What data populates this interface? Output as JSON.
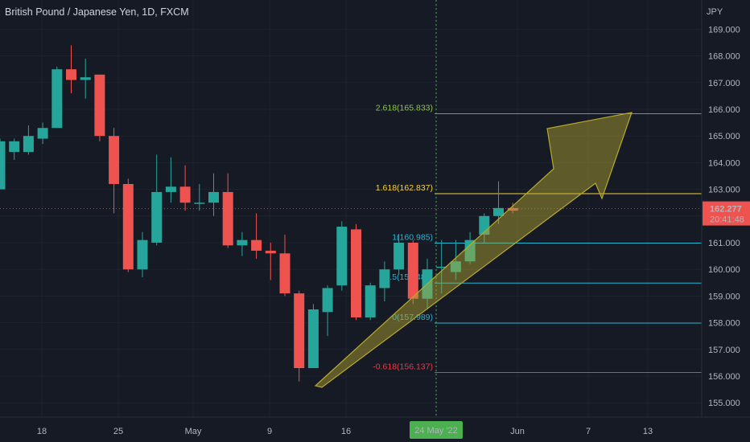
{
  "header": {
    "title": "British Pound / Japanese Yen, 1D, FXCM"
  },
  "price_axis": {
    "unit": "JPY",
    "ticks": [
      "169.000",
      "168.000",
      "167.000",
      "166.000",
      "165.000",
      "164.000",
      "163.000",
      "162.000",
      "161.000",
      "160.000",
      "159.000",
      "158.000",
      "157.000",
      "156.000",
      "155.000"
    ]
  },
  "time_axis": {
    "labels": [
      "18",
      "25",
      "May",
      "9",
      "16",
      "24 May '22",
      "Jun",
      "7",
      "13"
    ]
  },
  "current_price": {
    "value": "162.277",
    "countdown": "20:41:48"
  },
  "colors": {
    "up": "#26a69a",
    "down": "#ef5350",
    "background": "#161a25",
    "grid": "#1f2330",
    "fib_red": "#f23645",
    "fib_cyan": "#22b5d4",
    "fib_yellow": "#f5d13c",
    "fib_green": "#4caf50",
    "arrow": "#b6a92e",
    "crosshair": "#4caf50"
  },
  "chart_data": {
    "type": "candlestick",
    "title": "British Pound / Japanese Yen, 1D, FXCM",
    "ylabel": "JPY",
    "ylim": [
      154.6,
      170.2
    ],
    "x_labels": [
      "18",
      "25",
      "May",
      "9",
      "16",
      "24 May '22",
      "Jun",
      "7",
      "13"
    ],
    "candles": [
      {
        "o": 163.0,
        "h": 164.9,
        "l": 163.0,
        "c": 164.8
      },
      {
        "o": 164.4,
        "h": 164.9,
        "l": 164.1,
        "c": 164.8
      },
      {
        "o": 164.4,
        "h": 165.4,
        "l": 164.3,
        "c": 165.0
      },
      {
        "o": 164.9,
        "h": 165.5,
        "l": 164.7,
        "c": 165.3
      },
      {
        "o": 165.3,
        "h": 167.6,
        "l": 165.3,
        "c": 167.5
      },
      {
        "o": 167.5,
        "h": 168.4,
        "l": 166.6,
        "c": 167.1
      },
      {
        "o": 167.1,
        "h": 167.9,
        "l": 166.4,
        "c": 167.2
      },
      {
        "o": 167.3,
        "h": 167.3,
        "l": 164.8,
        "c": 165.0
      },
      {
        "o": 165.0,
        "h": 165.3,
        "l": 162.1,
        "c": 163.2
      },
      {
        "o": 163.2,
        "h": 163.4,
        "l": 159.9,
        "c": 160.0
      },
      {
        "o": 160.0,
        "h": 161.4,
        "l": 159.7,
        "c": 161.1
      },
      {
        "o": 161.0,
        "h": 164.3,
        "l": 160.9,
        "c": 162.9
      },
      {
        "o": 162.9,
        "h": 164.2,
        "l": 162.5,
        "c": 163.1
      },
      {
        "o": 163.1,
        "h": 163.9,
        "l": 162.2,
        "c": 162.5
      },
      {
        "o": 162.5,
        "h": 163.2,
        "l": 162.2,
        "c": 162.5
      },
      {
        "o": 162.5,
        "h": 163.6,
        "l": 162.0,
        "c": 162.9
      },
      {
        "o": 162.9,
        "h": 163.6,
        "l": 160.8,
        "c": 160.9
      },
      {
        "o": 160.9,
        "h": 161.4,
        "l": 160.5,
        "c": 161.1
      },
      {
        "o": 161.1,
        "h": 162.1,
        "l": 160.4,
        "c": 160.7
      },
      {
        "o": 160.7,
        "h": 161.0,
        "l": 159.6,
        "c": 160.6
      },
      {
        "o": 160.6,
        "h": 161.3,
        "l": 159.0,
        "c": 159.1
      },
      {
        "o": 159.1,
        "h": 159.2,
        "l": 155.8,
        "c": 156.3
      },
      {
        "o": 156.3,
        "h": 158.7,
        "l": 156.3,
        "c": 158.5
      },
      {
        "o": 158.4,
        "h": 159.4,
        "l": 157.5,
        "c": 159.3
      },
      {
        "o": 159.4,
        "h": 161.8,
        "l": 159.2,
        "c": 161.6
      },
      {
        "o": 161.5,
        "h": 161.7,
        "l": 158.1,
        "c": 158.2
      },
      {
        "o": 158.2,
        "h": 159.5,
        "l": 158.1,
        "c": 159.4
      },
      {
        "o": 159.3,
        "h": 160.3,
        "l": 158.8,
        "c": 160.0
      },
      {
        "o": 160.0,
        "h": 161.3,
        "l": 159.8,
        "c": 161.0
      },
      {
        "o": 161.0,
        "h": 161.1,
        "l": 158.7,
        "c": 158.9
      },
      {
        "o": 158.9,
        "h": 160.4,
        "l": 158.5,
        "c": 160.0
      },
      {
        "o": 160.1,
        "h": 161.1,
        "l": 159.1,
        "c": 160.1
      },
      {
        "o": 159.9,
        "h": 161.1,
        "l": 159.6,
        "c": 160.3
      },
      {
        "o": 160.3,
        "h": 161.4,
        "l": 160.2,
        "c": 161.1
      },
      {
        "o": 161.3,
        "h": 162.1,
        "l": 161.0,
        "c": 162.0
      },
      {
        "o": 162.0,
        "h": 163.3,
        "l": 161.7,
        "c": 162.3
      },
      {
        "o": 162.3,
        "h": 162.5,
        "l": 162.1,
        "c": 162.2
      }
    ],
    "fibonacci": [
      {
        "label": "2.618(165.833)",
        "price": 165.833,
        "color": "#4caf50",
        "label_color": "#8bc34a"
      },
      {
        "label": "1.618(162.837)",
        "price": 162.837,
        "color": "#f5d13c",
        "label_color": "#f5d13c"
      },
      {
        "label": "1(160.985)",
        "price": 160.985,
        "color": "#22b5d4",
        "label_color": "#22b5d4"
      },
      {
        "label": "0.5(159.487)",
        "price": 159.487,
        "color": "#22b5d4",
        "label_color": "#22b5d4"
      },
      {
        "label": "0(157.989)",
        "price": 157.989,
        "color": "#22b5d4",
        "label_color": "#22b5d4"
      },
      {
        "label": "-0.618(156.137)",
        "price": 156.137,
        "color": "#f23645",
        "label_color": "#f23645"
      }
    ],
    "current_price": 162.277,
    "highlighted_date": "24 May '22",
    "grid": true
  }
}
